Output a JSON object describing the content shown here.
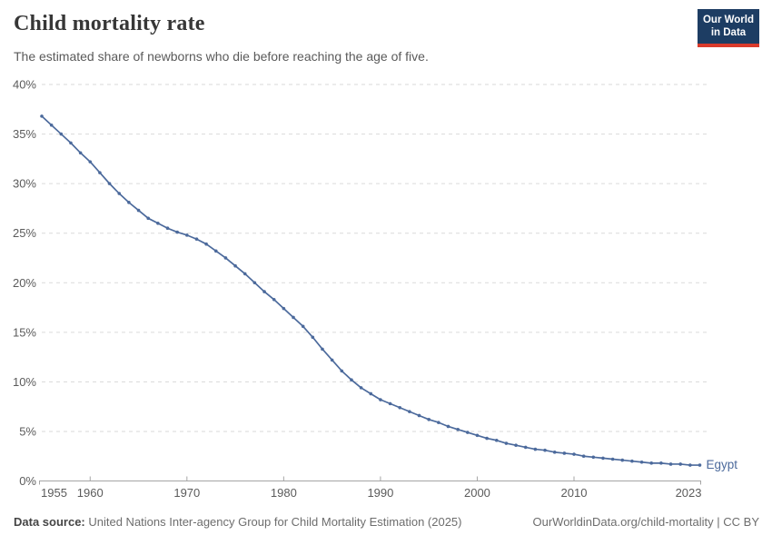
{
  "header": {
    "title": "Child mortality rate",
    "subtitle": "The estimated share of newborns who die before reaching the age of five.",
    "logo": {
      "line1": "Our World",
      "line2": "in Data"
    }
  },
  "footer": {
    "source_label": "Data source:",
    "source_text": " United Nations Inter-agency Group for Child Mortality Estimation (2025)",
    "attribution": "OurWorldinData.org/child-mortality | CC BY"
  },
  "colors": {
    "line": "#4c6a9c",
    "grid": "#dadada",
    "axis": "#a5a5a5",
    "tick_text": "#5b5b5b",
    "logo_bg": "#1d3d63",
    "logo_red": "#d93a2b"
  },
  "chart_data": {
    "type": "line",
    "title": "Child mortality rate",
    "xlabel": "",
    "ylabel": "",
    "x_range": [
      1955,
      2023
    ],
    "ylim": [
      0,
      40
    ],
    "yticks": [
      0,
      5,
      10,
      15,
      20,
      25,
      30,
      35,
      40
    ],
    "ytick_suffix": "%",
    "xticks": [
      1955,
      1960,
      1970,
      1980,
      1990,
      2000,
      2010,
      2023
    ],
    "grid": "dashed-horizontal",
    "legend": "end-of-line-label",
    "series": [
      {
        "name": "Egypt",
        "x": [
          1955,
          1956,
          1957,
          1958,
          1959,
          1960,
          1961,
          1962,
          1963,
          1964,
          1965,
          1966,
          1967,
          1968,
          1969,
          1970,
          1971,
          1972,
          1973,
          1974,
          1975,
          1976,
          1977,
          1978,
          1979,
          1980,
          1981,
          1982,
          1983,
          1984,
          1985,
          1986,
          1987,
          1988,
          1989,
          1990,
          1991,
          1992,
          1993,
          1994,
          1995,
          1996,
          1997,
          1998,
          1999,
          2000,
          2001,
          2002,
          2003,
          2004,
          2005,
          2006,
          2007,
          2008,
          2009,
          2010,
          2011,
          2012,
          2013,
          2014,
          2015,
          2016,
          2017,
          2018,
          2019,
          2020,
          2021,
          2022,
          2023
        ],
        "values": [
          36.8,
          35.9,
          35.0,
          34.1,
          33.1,
          32.2,
          31.1,
          30.0,
          29.0,
          28.1,
          27.3,
          26.5,
          26.0,
          25.5,
          25.1,
          24.8,
          24.4,
          23.9,
          23.2,
          22.5,
          21.7,
          20.9,
          20.0,
          19.1,
          18.3,
          17.4,
          16.5,
          15.6,
          14.5,
          13.3,
          12.2,
          11.1,
          10.2,
          9.4,
          8.8,
          8.2,
          7.8,
          7.4,
          7.0,
          6.6,
          6.2,
          5.9,
          5.5,
          5.2,
          4.9,
          4.6,
          4.3,
          4.1,
          3.8,
          3.6,
          3.4,
          3.2,
          3.1,
          2.9,
          2.8,
          2.7,
          2.5,
          2.4,
          2.3,
          2.2,
          2.1,
          2.0,
          1.9,
          1.8,
          1.8,
          1.7,
          1.7,
          1.6,
          1.6
        ]
      }
    ]
  }
}
